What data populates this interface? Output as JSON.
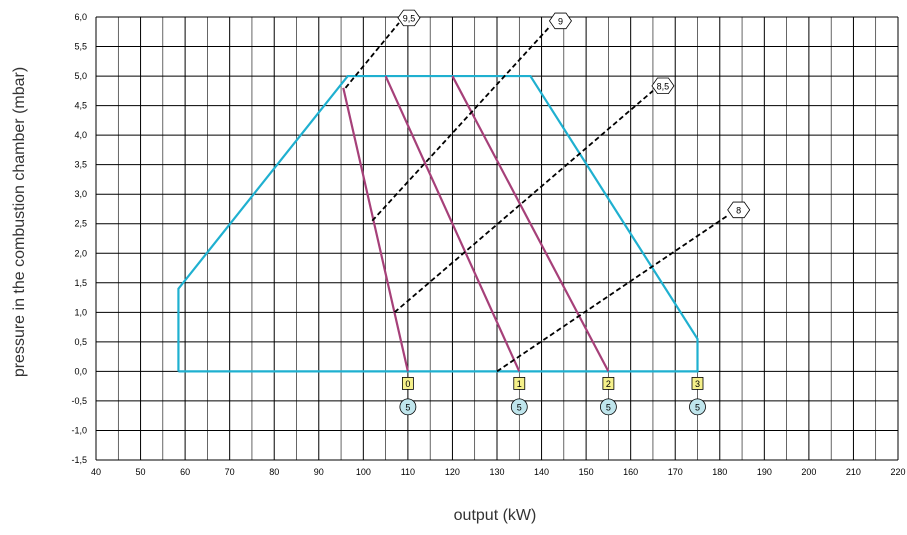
{
  "chart_data": {
    "type": "line",
    "xlabel": "output (kW)",
    "ylabel": "pressure in the combustion chamber (mbar)",
    "xlim": [
      40,
      220
    ],
    "ylim": [
      -1.5,
      6.0
    ],
    "x_ticks": [
      "40",
      "50",
      "60",
      "70",
      "80",
      "90",
      "100",
      "110",
      "120",
      "130",
      "140",
      "150",
      "160",
      "170",
      "180",
      "190",
      "200",
      "210",
      "220"
    ],
    "y_ticks": [
      "6,0",
      "5,5",
      "5,0",
      "4,5",
      "4,0",
      "3,5",
      "3,0",
      "2,5",
      "2,0",
      "1,5",
      "1,0",
      "0,5",
      "0,0",
      "-0,5",
      "-1,0",
      "-1,5"
    ],
    "y_tick_values": [
      6.0,
      5.5,
      5.0,
      4.5,
      4.0,
      3.5,
      3.0,
      2.5,
      2.0,
      1.5,
      1.0,
      0.5,
      0.0,
      -0.5,
      -1.0,
      -1.5
    ],
    "grid": true,
    "colors": {
      "envelope": "#1fb0d0",
      "setting": "#a64079",
      "dashed": "#000000",
      "square_marker": "#f5f08a",
      "circle_marker": "#bfe5ec"
    },
    "envelope": {
      "x": [
        58.5,
        58.5,
        96.5,
        137.5,
        175,
        175,
        58.5
      ],
      "y": [
        0.0,
        1.4,
        5.0,
        5.0,
        0.55,
        0.0,
        0.0
      ]
    },
    "setting_lines": [
      {
        "x": [
          95.5,
          110
        ],
        "y": [
          4.8,
          0.0
        ]
      },
      {
        "x": [
          105,
          135
        ],
        "y": [
          5.0,
          0.0
        ]
      },
      {
        "x": [
          120,
          155
        ],
        "y": [
          5.0,
          0.0
        ]
      }
    ],
    "dashed_lines": [
      {
        "label": "9,5",
        "x": [
          96,
          108
        ],
        "y": [
          4.8,
          5.9
        ]
      },
      {
        "label": "9",
        "x": [
          102,
          142
        ],
        "y": [
          2.55,
          5.85
        ]
      },
      {
        "label": "8,5",
        "x": [
          107,
          165
        ],
        "y": [
          1.0,
          4.75
        ]
      },
      {
        "label": "8",
        "x": [
          130,
          182
        ],
        "y": [
          0.0,
          2.65
        ]
      }
    ],
    "bottom_markers": [
      {
        "square": "0",
        "circle": "5",
        "x": 110
      },
      {
        "square": "1",
        "circle": "5",
        "x": 135
      },
      {
        "square": "2",
        "circle": "5",
        "x": 155
      },
      {
        "square": "3",
        "circle": "5",
        "x": 175
      }
    ]
  }
}
